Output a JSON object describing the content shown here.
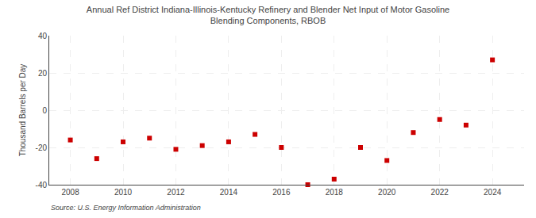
{
  "chart_data": {
    "type": "scatter",
    "title": "Annual Ref District Indiana-Illinois-Kentucky Refinery and Blender Net Input of Motor Gasoline\nBlending Components, RBOB",
    "y_label": "Thousand Barrels per Day",
    "annotations": [
      "Source: U.S. Energy Information Administration"
    ],
    "x": [
      2008,
      2009,
      2010,
      2011,
      2012,
      2013,
      2014,
      2015,
      2016,
      2017,
      2018,
      2019,
      2020,
      2021,
      2022,
      2023,
      2024
    ],
    "values": [
      -16,
      -26,
      -17,
      -15,
      -21,
      -19,
      -17,
      -13,
      -20,
      -40,
      -37,
      -20,
      -27,
      -12,
      -5,
      -8,
      27
    ],
    "color": "#cc0000",
    "marker": "square",
    "xlim": [
      2007.2,
      2025.2
    ],
    "xticks": [
      2008,
      2010,
      2012,
      2014,
      2016,
      2018,
      2020,
      2022,
      2024
    ],
    "ylim": [
      -40,
      40
    ],
    "yticks": [
      -40,
      -20,
      0,
      20,
      40
    ],
    "grid": true
  }
}
